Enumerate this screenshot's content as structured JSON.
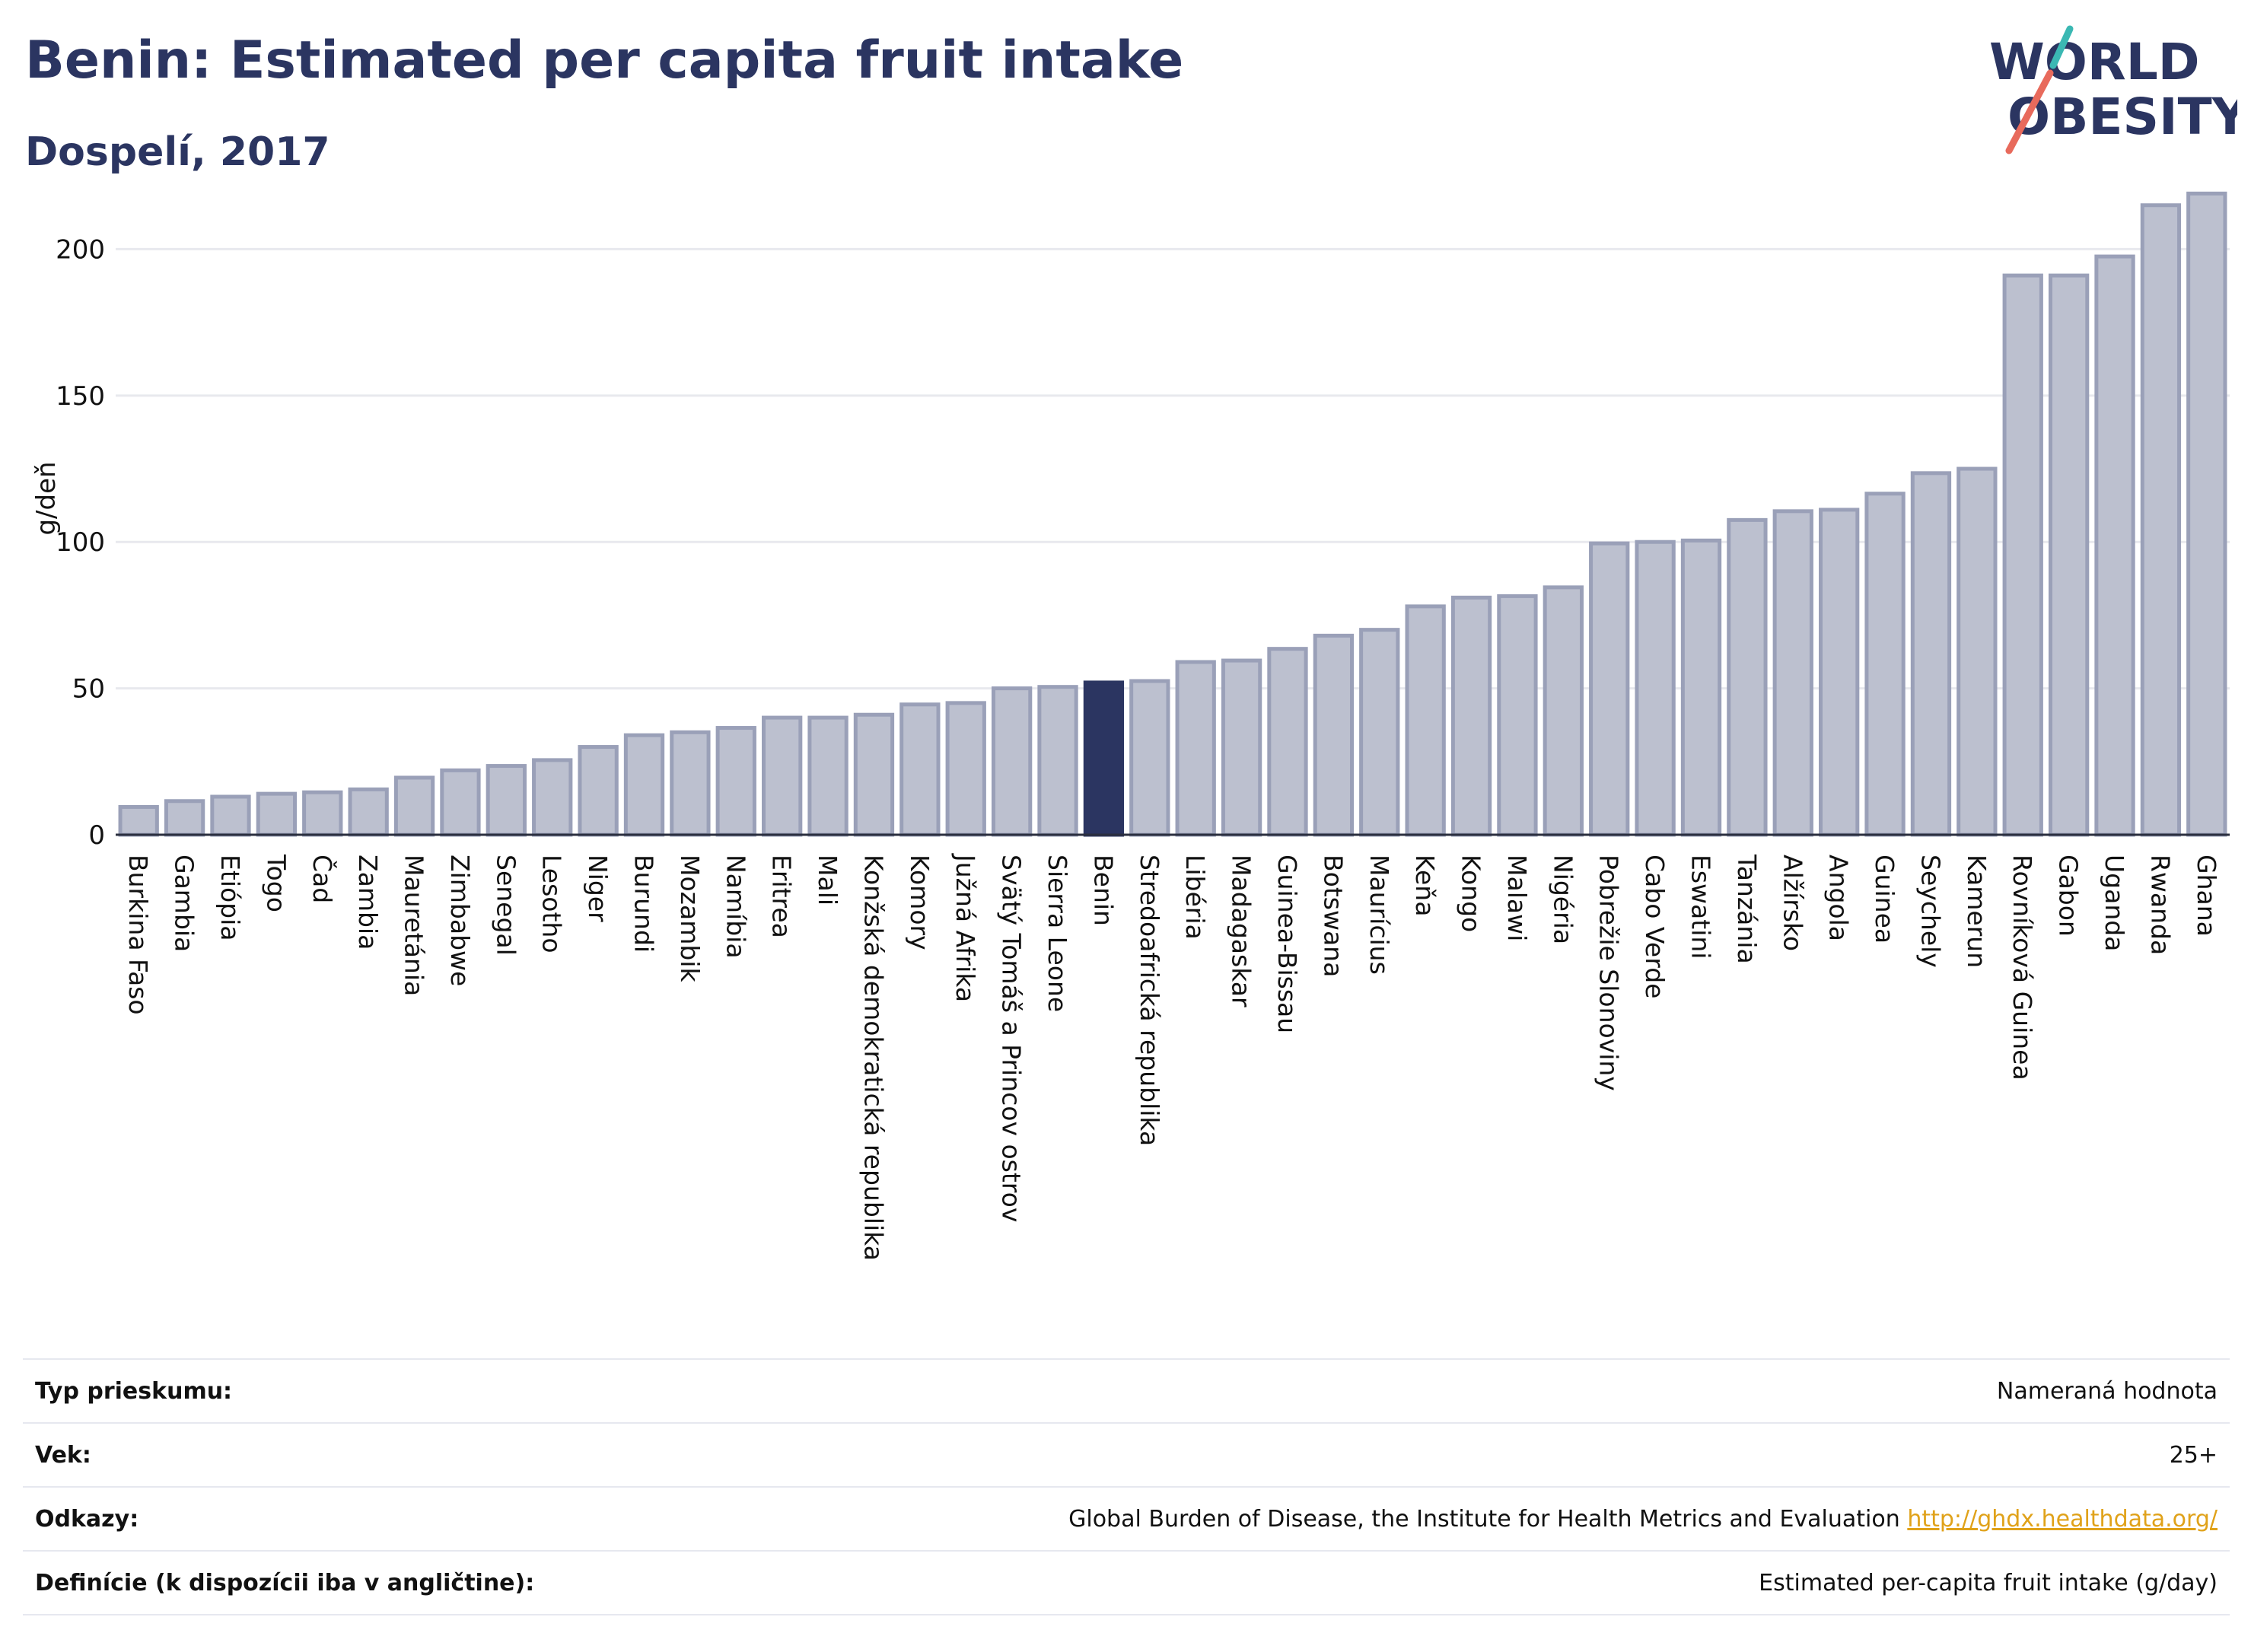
{
  "header": {
    "title": "Benin: Estimated per capita fruit intake",
    "subtitle": "Dospelí, 2017"
  },
  "logo": {
    "line1": "WORLD",
    "line2": "OBESITY"
  },
  "colors": {
    "bar": "#bcc0cf",
    "bar_border": "#9aa0b8",
    "highlight": "#2b3561",
    "grid": "#e8e9ee"
  },
  "chart_data": {
    "type": "bar",
    "ylabel": "g/deň",
    "ylim": [
      0,
      230
    ],
    "yticks": [
      0,
      50,
      100,
      150,
      200
    ],
    "grid": true,
    "highlight": "Benin",
    "categories": [
      "Burkina Faso",
      "Gambia",
      "Etiópia",
      "Togo",
      "Čad",
      "Zambia",
      "Mauretánia",
      "Zimbabwe",
      "Senegal",
      "Lesotho",
      "Niger",
      "Burundi",
      "Mozambik",
      "Namíbia",
      "Eritrea",
      "Mali",
      "Konžská demokratická republika",
      "Komory",
      "Južná Afrika",
      "Svätý Tomáš a Princov ostrov",
      "Sierra Leone",
      "Benin",
      "Stredoafrická republika",
      "Libéria",
      "Madagaskar",
      "Guinea-Bissau",
      "Botswana",
      "Maurícius",
      "Keňa",
      "Kongo",
      "Malawi",
      "Nigéria",
      "Pobrežie Slonoviny",
      "Cabo Verde",
      "Eswatini",
      "Tanzánia",
      "Alžírsko",
      "Angola",
      "Guinea",
      "Seychely",
      "Kamerun",
      "Rovníková Guinea",
      "Gabon",
      "Uganda",
      "Rwanda",
      "Ghana"
    ],
    "values": [
      9.5,
      11.5,
      13,
      14,
      14.5,
      15.5,
      19.5,
      22,
      23.5,
      25.5,
      30,
      34,
      35,
      36.5,
      40,
      40,
      41,
      44.5,
      45,
      50,
      50.5,
      52,
      52.5,
      59,
      59.5,
      63.5,
      68,
      70,
      78,
      81,
      81.5,
      84.5,
      99.5,
      100,
      100.5,
      107.5,
      110.5,
      111,
      116.5,
      123.5,
      125,
      191,
      191,
      197.5,
      215,
      219
    ]
  },
  "info_table": [
    {
      "key": "Typ prieskumu:",
      "value": "Nameraná hodnota"
    },
    {
      "key": "Vek:",
      "value": "25+"
    },
    {
      "key": "Odkazy:",
      "value": "Global Burden of Disease, the Institute for Health Metrics and Evaluation",
      "link": "http://ghdx.healthdata.org/"
    },
    {
      "key": "Definície (k dispozícii iba v angličtine):",
      "value": "Estimated per-capita fruit intake (g/day)"
    }
  ]
}
